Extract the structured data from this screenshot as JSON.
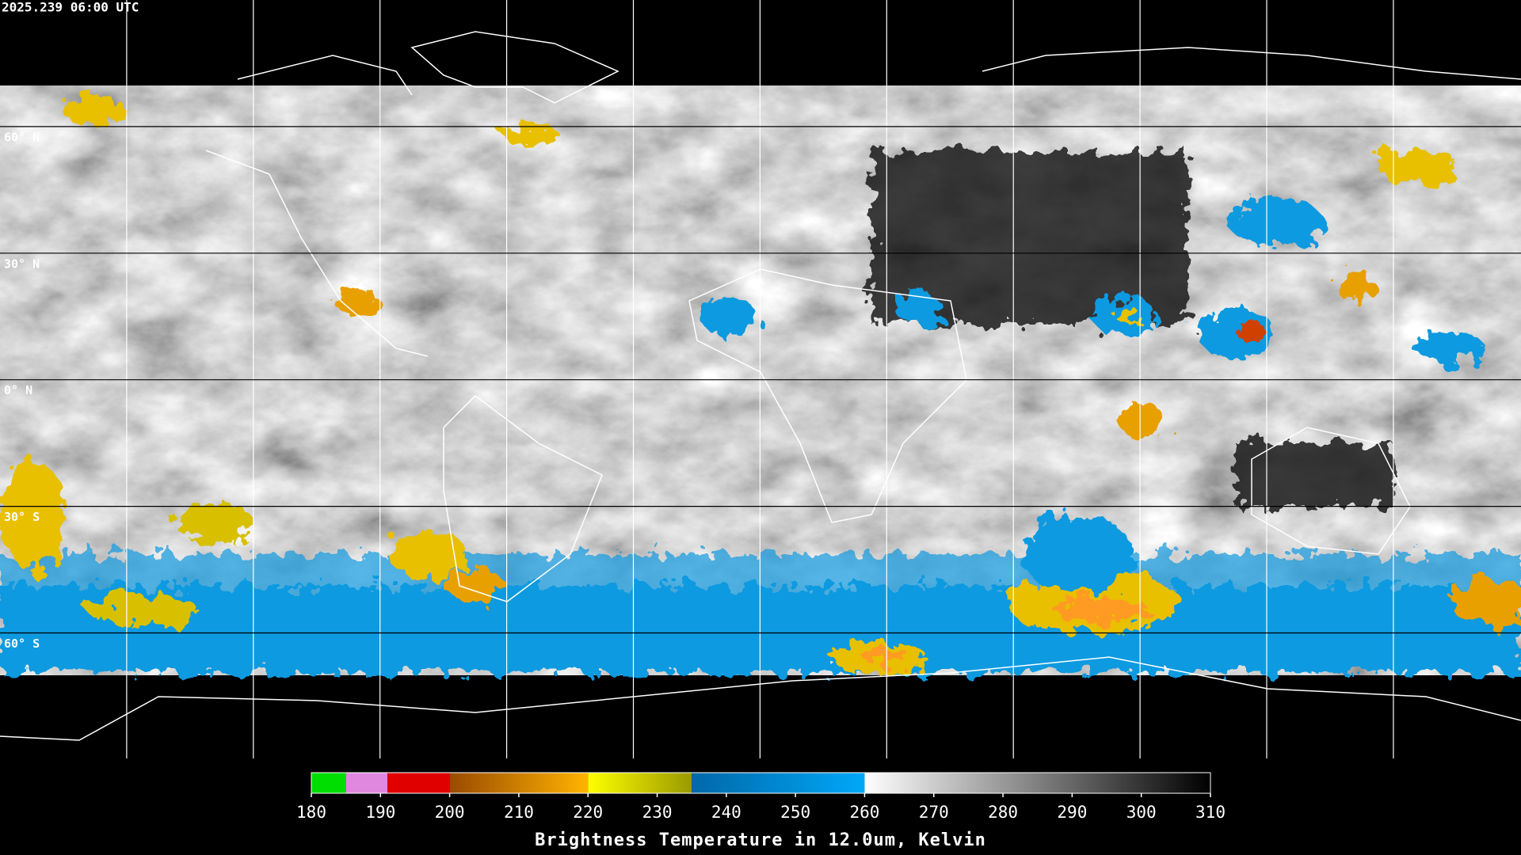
{
  "header": {
    "timestamp": "2025.239 06:00 UTC"
  },
  "map": {
    "latitude_labels": [
      "60° N",
      "30° N",
      "0° N",
      "30° S",
      "60° S"
    ]
  },
  "colorbar": {
    "title": "Brightness Temperature in 12.0um, Kelvin",
    "range": [
      180,
      310
    ],
    "ticks": [
      180,
      190,
      200,
      210,
      220,
      230,
      240,
      250,
      260,
      270,
      280,
      290,
      300,
      310
    ],
    "segments": [
      {
        "from": 180,
        "to": 185,
        "start": "#00dd00",
        "end": "#00dd00"
      },
      {
        "from": 185,
        "to": 191,
        "start": "#e088e0",
        "end": "#e088e0"
      },
      {
        "from": 191,
        "to": 200,
        "start": "#e00000",
        "end": "#e00000"
      },
      {
        "from": 200,
        "to": 220,
        "start": "#9a4a00",
        "end": "#ffb400"
      },
      {
        "from": 220,
        "to": 235,
        "start": "#ffff00",
        "end": "#9a9a00"
      },
      {
        "from": 235,
        "to": 260,
        "start": "#0068a8",
        "end": "#00a8f8"
      },
      {
        "from": 260,
        "to": 310,
        "start": "#ffffff",
        "end": "#000000"
      }
    ]
  }
}
